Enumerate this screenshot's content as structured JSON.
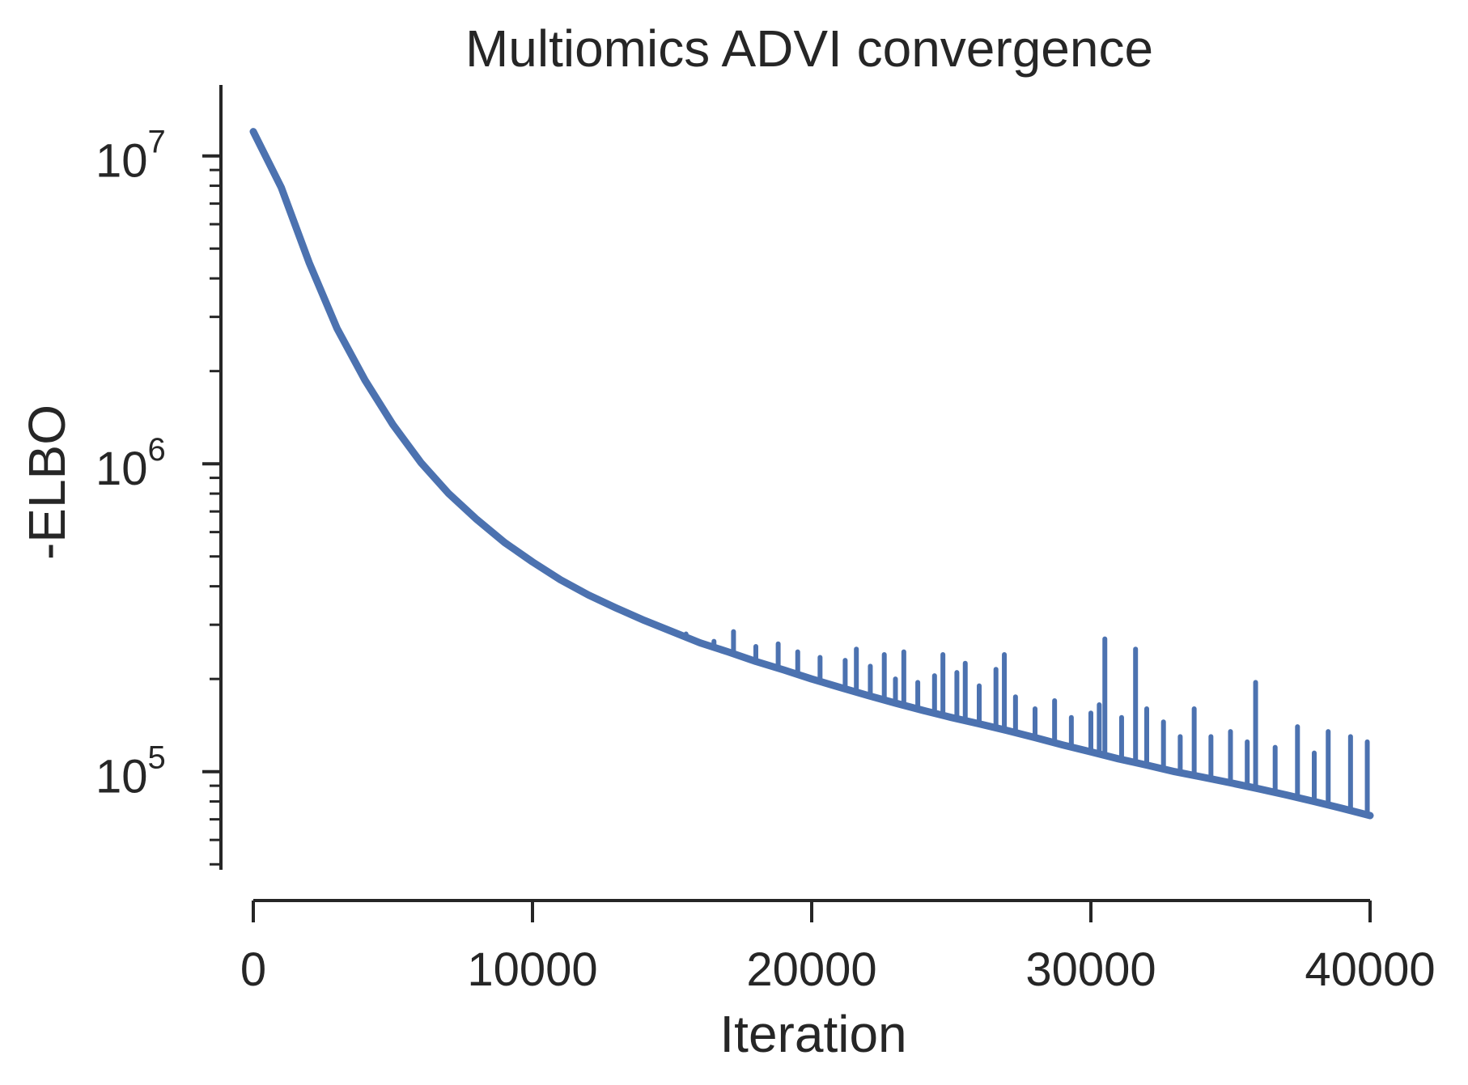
{
  "chart_data": {
    "type": "line",
    "title": "Multiomics ADVI convergence",
    "xlabel": "Iteration",
    "ylabel": "-ELBO",
    "xlim": [
      0,
      40000
    ],
    "ylim": [
      48000,
      17000000
    ],
    "y_scale": "log",
    "x_ticks": [
      0,
      10000,
      20000,
      30000,
      40000
    ],
    "x_tick_labels": [
      "0",
      "10000",
      "20000",
      "30000",
      "40000"
    ],
    "y_ticks": [
      {
        "value": 100000,
        "base": "10",
        "exp": "5"
      },
      {
        "value": 1000000,
        "base": "10",
        "exp": "6"
      },
      {
        "value": 10000000,
        "base": "10",
        "exp": "7"
      }
    ],
    "grid": false,
    "line_color": "#4c72b0",
    "series": [
      {
        "x": [
          0,
          1000,
          2000,
          3000,
          4000,
          5000,
          6000,
          7000,
          8000,
          9000,
          10000,
          11000,
          12000,
          13000,
          14000,
          15000,
          16000,
          17000,
          18000,
          19000,
          20000,
          21000,
          22000,
          23000,
          24000,
          25000,
          26000,
          27000,
          28000,
          29000,
          30000,
          31000,
          32000,
          33000,
          34000,
          35000,
          36000,
          37000,
          38000,
          39000,
          40000
        ],
        "y": [
          12000000,
          7900000,
          4500000,
          2750000,
          1870000,
          1340000,
          1010000,
          800000,
          660000,
          555000,
          480000,
          420000,
          375000,
          340000,
          310000,
          285000,
          262000,
          245000,
          228000,
          214000,
          200000,
          188000,
          177000,
          167000,
          158000,
          150000,
          143000,
          136000,
          129000,
          122000,
          116000,
          110000,
          105000,
          100000,
          96000,
          92000,
          88000,
          84000,
          80000,
          76000,
          72000
        ]
      }
    ],
    "spikes": [
      {
        "x": 15500,
        "y": 280000
      },
      {
        "x": 16500,
        "y": 265000
      },
      {
        "x": 17200,
        "y": 285000
      },
      {
        "x": 18000,
        "y": 255000
      },
      {
        "x": 18800,
        "y": 260000
      },
      {
        "x": 19500,
        "y": 245000
      },
      {
        "x": 20300,
        "y": 235000
      },
      {
        "x": 21200,
        "y": 230000
      },
      {
        "x": 21600,
        "y": 250000
      },
      {
        "x": 22100,
        "y": 220000
      },
      {
        "x": 22600,
        "y": 240000
      },
      {
        "x": 23000,
        "y": 200000
      },
      {
        "x": 23300,
        "y": 245000
      },
      {
        "x": 23800,
        "y": 195000
      },
      {
        "x": 24400,
        "y": 205000
      },
      {
        "x": 24700,
        "y": 240000
      },
      {
        "x": 25200,
        "y": 210000
      },
      {
        "x": 25500,
        "y": 225000
      },
      {
        "x": 26000,
        "y": 190000
      },
      {
        "x": 26600,
        "y": 215000
      },
      {
        "x": 26900,
        "y": 240000
      },
      {
        "x": 27300,
        "y": 175000
      },
      {
        "x": 28000,
        "y": 160000
      },
      {
        "x": 28700,
        "y": 170000
      },
      {
        "x": 29300,
        "y": 150000
      },
      {
        "x": 30000,
        "y": 155000
      },
      {
        "x": 30300,
        "y": 165000
      },
      {
        "x": 30500,
        "y": 270000
      },
      {
        "x": 31100,
        "y": 150000
      },
      {
        "x": 31600,
        "y": 250000
      },
      {
        "x": 32000,
        "y": 160000
      },
      {
        "x": 32600,
        "y": 145000
      },
      {
        "x": 33200,
        "y": 130000
      },
      {
        "x": 33700,
        "y": 160000
      },
      {
        "x": 34300,
        "y": 130000
      },
      {
        "x": 35000,
        "y": 135000
      },
      {
        "x": 35600,
        "y": 125000
      },
      {
        "x": 35900,
        "y": 195000
      },
      {
        "x": 36600,
        "y": 120000
      },
      {
        "x": 37400,
        "y": 140000
      },
      {
        "x": 38000,
        "y": 115000
      },
      {
        "x": 38500,
        "y": 135000
      },
      {
        "x": 39300,
        "y": 130000
      },
      {
        "x": 39900,
        "y": 125000
      }
    ]
  }
}
